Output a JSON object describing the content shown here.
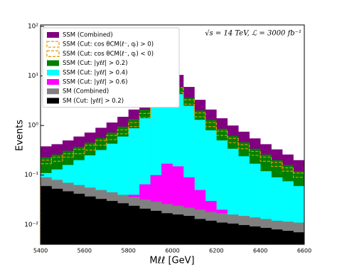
{
  "chart_data": {
    "type": "histogram",
    "y_label": "Events",
    "x_label": "Mℓℓ [GeV]",
    "annotation": "√s = 14 TeV, ℒ = 3000 fb⁻¹",
    "log_scale_y": true,
    "grid": false,
    "legend_position": "upper-left",
    "bins": [
      5400,
      5450,
      5500,
      5550,
      5600,
      5650,
      5700,
      5750,
      5800,
      5850,
      5900,
      5950,
      6000,
      6050,
      6100,
      6150,
      6200,
      6250,
      6300,
      6350,
      6400,
      6450,
      6500,
      6550,
      6600
    ],
    "xlim": [
      5400,
      6600
    ],
    "xticks": [
      5400,
      5600,
      5800,
      6000,
      6200,
      6400,
      6600
    ],
    "ylim": [
      0.004,
      107
    ],
    "yticks": [
      {
        "value": 0.01,
        "label": "10⁻²"
      },
      {
        "value": 0.1,
        "label": "10⁻¹"
      },
      {
        "value": 1,
        "label": "10⁰"
      },
      {
        "value": 10,
        "label": "10¹"
      },
      {
        "value": 100,
        "label": "10²"
      }
    ],
    "series": [
      {
        "name": "SSM (Combined)",
        "color": "#800080",
        "style": "filled",
        "values": [
          0.38,
          0.42,
          0.5,
          0.6,
          0.72,
          0.9,
          1.15,
          1.5,
          2.1,
          3.2,
          5.5,
          10.5,
          10.5,
          6,
          3.3,
          2.1,
          1.4,
          1.0,
          0.75,
          0.55,
          0.42,
          0.33,
          0.26,
          0.2
        ]
      },
      {
        "name": "SSM (Cut: cos θCM(ℓ⁻, qᵢ) > 0)",
        "color": "#e69500",
        "style": "dashed",
        "values": [
          0.2,
          0.23,
          0.27,
          0.33,
          0.4,
          0.5,
          0.63,
          0.82,
          1.15,
          1.75,
          3.0,
          5.8,
          5.8,
          3.3,
          1.8,
          1.15,
          0.77,
          0.55,
          0.41,
          0.3,
          0.23,
          0.18,
          0.14,
          0.11
        ]
      },
      {
        "name": "SSM (Cut: cos θCM(ℓ⁻, qᵢ) < 0)",
        "color": "#e69500",
        "style": "dashed",
        "values": [
          0.17,
          0.19,
          0.23,
          0.27,
          0.32,
          0.4,
          0.52,
          0.68,
          0.95,
          1.45,
          2.5,
          4.7,
          4.7,
          2.7,
          1.5,
          0.95,
          0.63,
          0.45,
          0.34,
          0.25,
          0.19,
          0.15,
          0.12,
          0.09
        ]
      },
      {
        "name": "SSM (Cut: |yℓℓ| > 0.2)",
        "color": "#008000",
        "style": "filled",
        "values": [
          0.23,
          0.26,
          0.31,
          0.37,
          0.45,
          0.56,
          0.72,
          0.95,
          1.35,
          2.1,
          3.4,
          6,
          6,
          3.6,
          2.0,
          1.3,
          0.86,
          0.62,
          0.46,
          0.34,
          0.26,
          0.2,
          0.16,
          0.12
        ]
      },
      {
        "name": "SSM (Cut: |yℓℓ| > 0.4)",
        "color": "#00ffff",
        "style": "filled",
        "values": [
          0.11,
          0.13,
          0.16,
          0.2,
          0.25,
          0.32,
          0.43,
          0.6,
          0.88,
          1.4,
          2.4,
          4.3,
          4.3,
          2.5,
          1.3,
          0.8,
          0.5,
          0.34,
          0.24,
          0.17,
          0.12,
          0.09,
          0.075,
          0.06
        ]
      },
      {
        "name": "SSM (Cut: |yℓℓ| > 0.6)",
        "color": "#ff00ff",
        "style": "filled",
        "values": [
          0.008,
          0.009,
          0.01,
          0.012,
          0.014,
          0.017,
          0.021,
          0.028,
          0.04,
          0.065,
          0.1,
          0.17,
          0.15,
          0.09,
          0.05,
          0.03,
          0.02,
          0.014,
          0.011,
          0.009,
          0.007,
          0.006,
          0.005,
          0.0045
        ]
      },
      {
        "name": "SM (Combined)",
        "color": "#808080",
        "style": "filled",
        "values": [
          0.09,
          0.08,
          0.07,
          0.063,
          0.056,
          0.05,
          0.045,
          0.04,
          0.036,
          0.032,
          0.029,
          0.026,
          0.024,
          0.022,
          0.02,
          0.018,
          0.017,
          0.016,
          0.015,
          0.014,
          0.013,
          0.012,
          0.0115,
          0.011
        ]
      },
      {
        "name": "SM (Cut: |yℓℓ| > 0.2)",
        "color": "#000000",
        "style": "filled",
        "values": [
          0.06,
          0.053,
          0.047,
          0.042,
          0.037,
          0.033,
          0.03,
          0.027,
          0.024,
          0.021,
          0.019,
          0.017,
          0.016,
          0.015,
          0.013,
          0.012,
          0.011,
          0.0105,
          0.0098,
          0.0092,
          0.0086,
          0.008,
          0.0075,
          0.007
        ]
      }
    ]
  }
}
